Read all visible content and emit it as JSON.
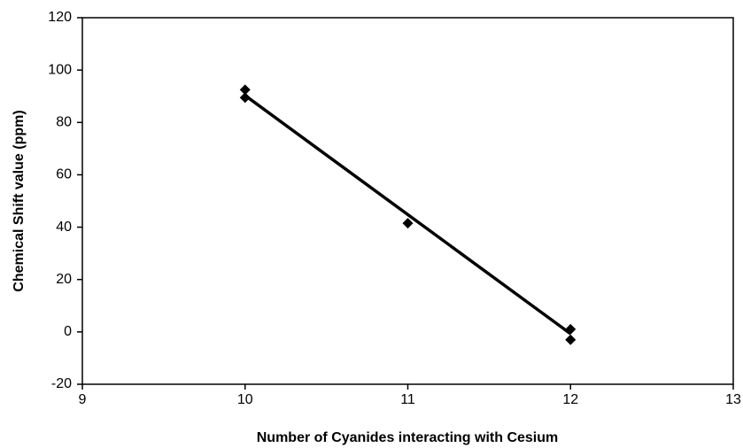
{
  "chart_data": {
    "type": "scatter",
    "x_label": "Number of Cyanides interacting with Cesium",
    "y_label": "Chemical Shift value (ppm)",
    "xlim": [
      9,
      13
    ],
    "xticks": [
      9,
      10,
      11,
      12,
      13
    ],
    "ylim": [
      -20,
      120
    ],
    "yticks": [
      -20,
      0,
      20,
      40,
      60,
      80,
      100,
      120
    ],
    "grid": false,
    "series": [
      {
        "color": "#000000",
        "marker": "diamond",
        "x": [
          10,
          10,
          11,
          12,
          12
        ],
        "values": [
          92.5,
          89.5,
          41.5,
          1,
          -3
        ]
      }
    ],
    "trendline": {
      "color": "#000000",
      "x": [
        10,
        12
      ],
      "values": [
        90.3,
        -0.7
      ]
    }
  }
}
